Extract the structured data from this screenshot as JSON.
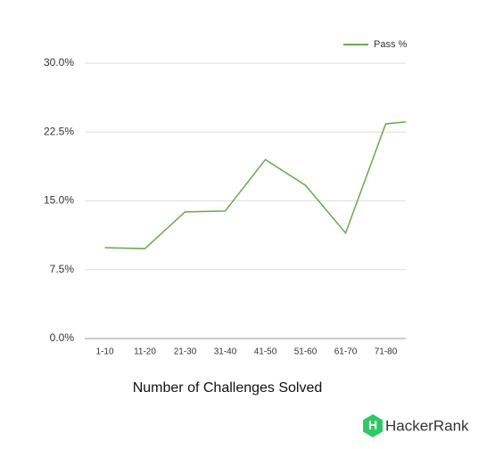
{
  "chart_data": {
    "type": "line",
    "x_label": "Number of Challenges Solved",
    "categories": [
      "1-10",
      "11-20",
      "21-30",
      "31-40",
      "41-50",
      "51-60",
      "61-70",
      "71-80",
      null
    ],
    "series": [
      {
        "name": "Pass %",
        "color": "#6aa84f",
        "values": [
          9.9,
          9.8,
          13.8,
          13.9,
          19.5,
          16.7,
          11.5,
          23.4,
          23.8
        ]
      }
    ],
    "ylim": [
      0,
      30
    ],
    "yticks": [
      {
        "value": 0,
        "label": "0.0%"
      },
      {
        "value": 7.5,
        "label": "7.5%"
      },
      {
        "value": 15,
        "label": "15.0%"
      },
      {
        "value": 22.5,
        "label": "22.5%"
      },
      {
        "value": 30,
        "label": "30.0%"
      }
    ],
    "grid": true,
    "legend": "top-right"
  },
  "brand": "HackerRank"
}
